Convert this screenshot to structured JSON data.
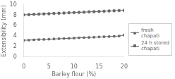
{
  "chart_data": {
    "type": "line",
    "x": [
      0,
      1,
      2,
      3,
      4,
      5,
      6,
      7,
      8,
      9,
      10,
      11,
      12,
      13,
      14,
      15,
      16,
      17,
      18,
      19,
      20
    ],
    "series": [
      {
        "name": "fresh chapati",
        "color": "#666666",
        "marker": "circle",
        "values": [
          8.08,
          8.12,
          8.17,
          8.21,
          8.25,
          8.29,
          8.34,
          8.38,
          8.42,
          8.47,
          8.51,
          8.55,
          8.6,
          8.64,
          8.68,
          8.72,
          8.77,
          8.81,
          8.85,
          8.9,
          8.94
        ]
      },
      {
        "name": "24 h stored\nchapati",
        "color": "#666666",
        "marker": "square",
        "values": [
          3.2,
          3.24,
          3.28,
          3.33,
          3.37,
          3.41,
          3.45,
          3.5,
          3.54,
          3.58,
          3.62,
          3.67,
          3.71,
          3.75,
          3.79,
          3.84,
          3.88,
          3.92,
          3.96,
          4.01,
          4.2
        ]
      }
    ],
    "xlabel": "Barley flour (%)",
    "ylabel": "Extensibility (mm)",
    "xlim": [
      0,
      20
    ],
    "ylim": [
      0,
      10
    ],
    "xticks": [
      0,
      5,
      10,
      15,
      20
    ],
    "yticks": [
      0,
      2,
      4,
      6,
      8,
      10
    ],
    "grid": false,
    "legend": "right"
  }
}
